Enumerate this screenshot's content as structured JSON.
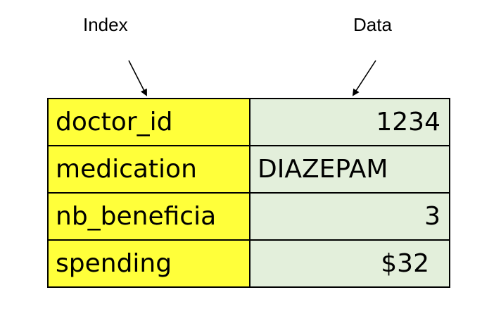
{
  "labels": {
    "index": "Index",
    "data": "Data"
  },
  "rows": [
    {
      "key": "doctor_id",
      "value": "1234"
    },
    {
      "key": "medication",
      "value": "DIAZEPAM"
    },
    {
      "key": "nb_beneficia",
      "value": "3"
    },
    {
      "key": "spending",
      "value": "$32"
    }
  ],
  "colors": {
    "index_fill": "#ffff3a",
    "data_fill": "#e3efdb",
    "border": "#000000"
  }
}
